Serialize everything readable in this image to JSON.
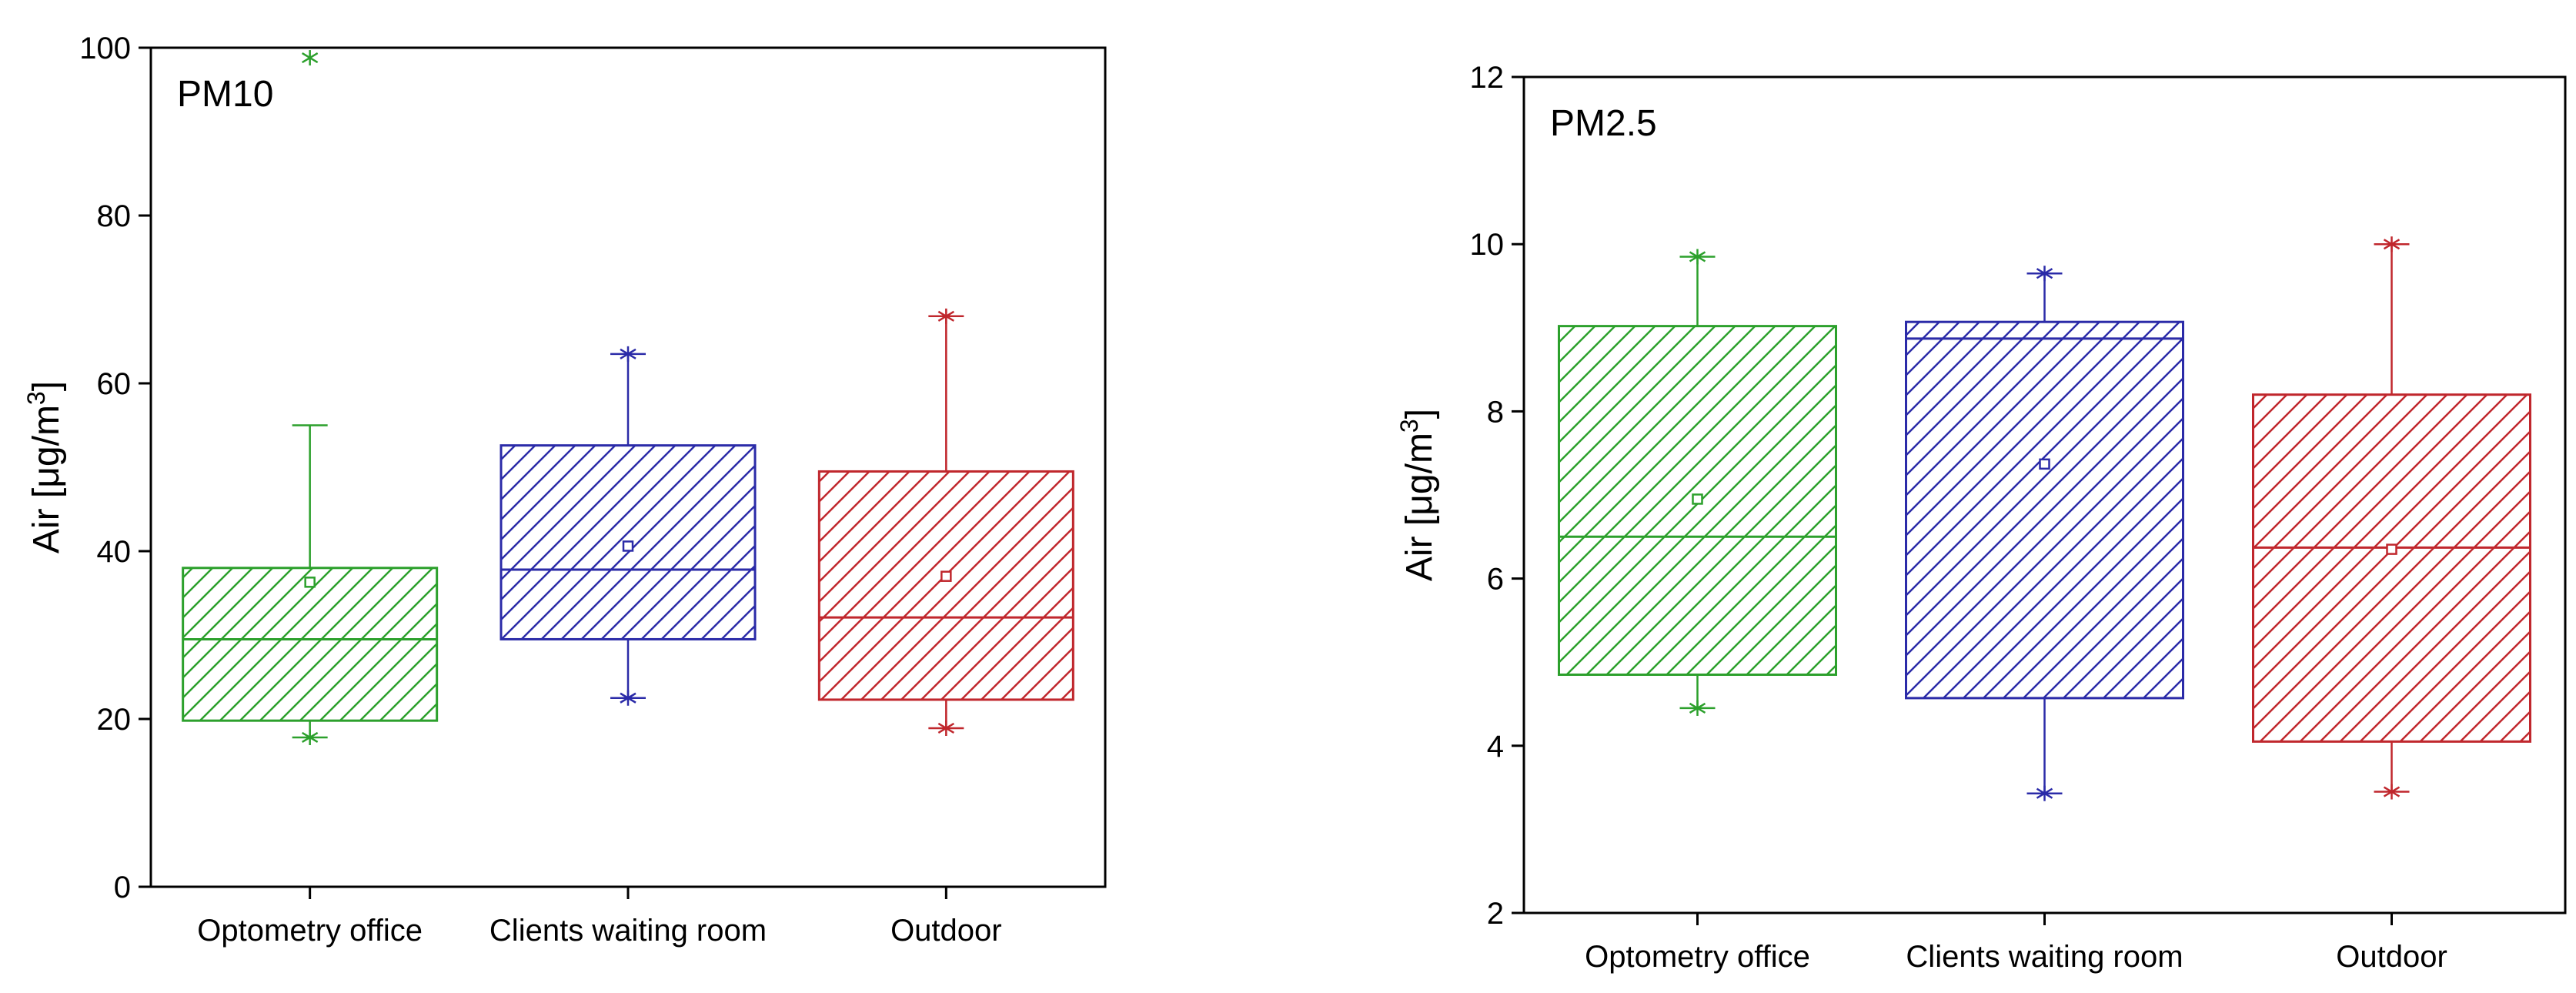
{
  "chart_data": [
    {
      "type": "box",
      "title": "PM10",
      "ylabel": "Air [μg/m3]",
      "ylim": [
        0,
        100
      ],
      "yticks": [
        0,
        20,
        40,
        60,
        80,
        100
      ],
      "categories": [
        "Optometry office",
        "Clients waiting room",
        "Outdoor"
      ],
      "boxes": [
        {
          "name": "Optometry office",
          "q1": 19.8,
          "median": 29.5,
          "q3": 38.0,
          "mean": 36.3,
          "whisker_low": 17.8,
          "whisker_high": 55.0,
          "min": 17.8,
          "max": 98.8,
          "color": "#2ca02c"
        },
        {
          "name": "Clients waiting room",
          "q1": 29.5,
          "median": 37.8,
          "q3": 52.6,
          "mean": 40.6,
          "whisker_low": 22.5,
          "whisker_high": 63.5,
          "min": 22.5,
          "max": 63.5,
          "color": "#2b2ba8"
        },
        {
          "name": "Outdoor",
          "q1": 22.3,
          "median": 32.1,
          "q3": 49.5,
          "mean": 37.0,
          "whisker_low": 18.9,
          "whisker_high": 68.0,
          "min": 18.9,
          "max": 68.0,
          "color": "#c0272d"
        }
      ]
    },
    {
      "type": "box",
      "title": "PM2.5",
      "ylabel": "Air [μg/m3]",
      "ylim": [
        2,
        12
      ],
      "yticks": [
        2,
        4,
        6,
        8,
        10,
        12
      ],
      "categories": [
        "Optometry office",
        "Clients waiting room",
        "Outdoor"
      ],
      "boxes": [
        {
          "name": "Optometry office",
          "q1": 4.85,
          "median": 6.5,
          "q3": 9.02,
          "mean": 6.95,
          "whisker_low": 4.45,
          "whisker_high": 9.85,
          "min": 4.45,
          "max": 9.85,
          "color": "#2ca02c"
        },
        {
          "name": "Clients waiting room",
          "q1": 4.57,
          "median": 8.87,
          "q3": 9.07,
          "mean": 7.37,
          "whisker_low": 3.43,
          "whisker_high": 9.65,
          "min": 3.43,
          "max": 9.65,
          "color": "#2b2ba8"
        },
        {
          "name": "Outdoor",
          "q1": 4.05,
          "median": 6.37,
          "q3": 8.2,
          "mean": 6.35,
          "whisker_low": 3.45,
          "whisker_high": 10.0,
          "min": 3.45,
          "max": 10.0,
          "color": "#c0272d"
        }
      ]
    }
  ]
}
